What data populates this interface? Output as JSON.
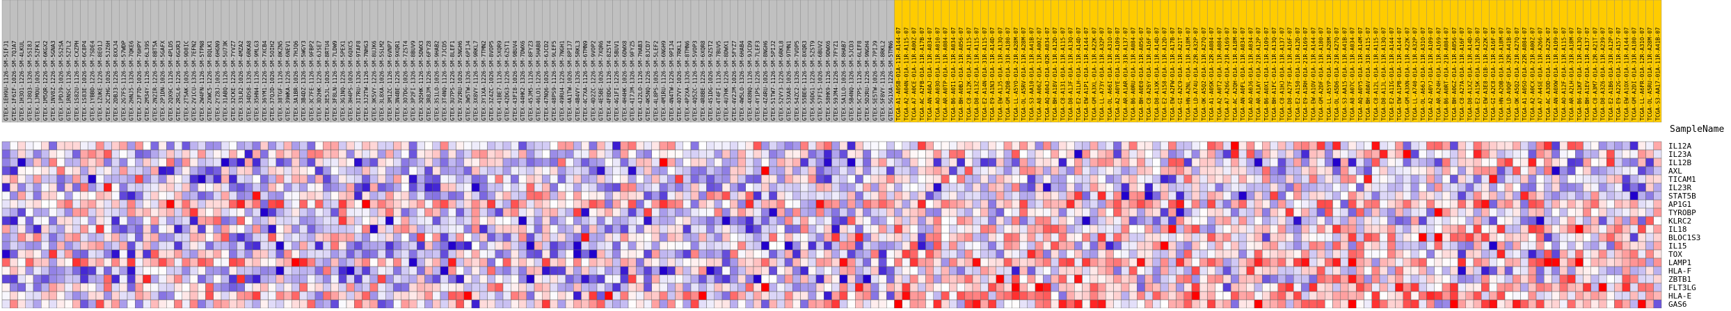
{
  "chart_data": {
    "type": "heatmap",
    "title": "",
    "row_axis_label": "SampleName",
    "colors": {
      "low": "#2200cc",
      "mid": "#ffffff",
      "high": "#ff0000",
      "group_normal": "#c0c0c0",
      "group_tumor": "#ffcc00",
      "grid": "#666666"
    },
    "genes": [
      "IL12A",
      "IL23A",
      "IL12B",
      "AXL",
      "TICAM1",
      "IL23R",
      "STAT5B",
      "AP1G1",
      "TYROBP",
      "KLRC2",
      "IL18",
      "BLOC1S3",
      "IL15",
      "TOX",
      "LAMP1",
      "HLA-F",
      "ZBTB1",
      "FLT3LG",
      "HLA-E",
      "GAS6"
    ],
    "samples": {
      "group_a": [
        "GTEX-1EH9U-1126-SM-5IFJ1",
        "GTEX-1F6IF-1026-SM-7QJA7",
        "GTEX-1H3O1-1226-SM-4LKUL",
        "GTEX-1J8Q3-1326-SM-5SI8J",
        "GTEX-1JMOU-1026-SM-5ZFK1",
        "GTEX-1M5QR-1226-SM-6KGX2",
        "GTEX-1NV8Z-1226-SM-5GNA3",
        "GTEX-1PDJ9-1026-SM-5S2SA",
        "GTEX-1RNSC-1126-SM-5Z7L2",
        "GTEX-1S82U-1126-SM-CXZPH",
        "GTEX-1S83E-1026-SM-6C8P4",
        "GTEX-1YBBD-1226-SM-7SDE4",
        "GTEX-1ZUKE-1226-SM-8EO1J",
        "GTEX-2C2HG-1026-SM-5JZ6H",
        "GTEX-2DBJ3-1226-SM-8XXJ4",
        "GTEX-2G7FS-1126-SM-57WDP",
        "GTEX-2HNJ5-1326-SM-7QKE6",
        "GTEX-2JF7D-1026-SM-76HPY",
        "GTEX-2M34Y-1126-SM-6L39S",
        "GTEX-2N2IR-1226-SM-8BT5A",
        "GTEX-2P1DN-1026-SM-5GAFX",
        "GTEX-2QX9C-1126-SM-4PLD5",
        "GTEX-2RSL6-1226-SM-6GXR3",
        "GTEX-2T5AK-1026-SM-9D8IC",
        "GTEX-2V1CU-1326-SM-7EFN2",
        "GTEX-2W4FN-1126-SM-5TPN8",
        "GTEX-2XWC5-1226-SM-8QLK1",
        "GTEX-2YZ8J-1026-SM-6HGN9",
        "GTEX-31ABQ-1126-SM-5U73K",
        "GTEX-32CKE-1226-SM-7YVZ7",
        "GTEX-33LR2-1026-SM-4MZA2",
        "GTEX-34DS8-1326-SM-6RKA8",
        "GTEX-35HN4-1126-SM-9MLG3",
        "GTEX-36YM1-1226-SM-7XCB4",
        "GTEX-37QJD-1026-SM-5OIH2",
        "GTEX-38TGF-1126-SM-8KZN5",
        "GTEX-39WKA-1226-SM-6NEV1",
        "GTEX-3A1BR-1026-SM-7HJQ6",
        "GTEX-3B4DZ-1326-SM-5WGY3",
        "GTEX-3C7FE-1126-SM-9FBP2",
        "GTEX-3D2HK-1226-SM-6JSE7",
        "GTEX-3E5JL-1026-SM-8RTU4",
        "GTEX-3F8LN-1126-SM-7LDW9",
        "GTEX-3G1NQ-1226-SM-5PEX1",
        "GTEX-3H4PS-1026-SM-6QXC5",
        "GTEX-3I7RU-1326-SM-9TAF8",
        "GTEX-3J2TW-1126-SM-7NHG3",
        "GTEX-3K5VY-1226-SM-8UJK6",
        "GTEX-3L8XA-1026-SM-5SLM2",
        "GTEX-3M1ZC-1126-SM-6VNP7",
        "GTEX-3N4BE-1226-SM-9XQR1",
        "GTEX-3O7DG-1026-SM-7ZST4",
        "GTEX-3P2FI-1326-SM-8BUV9",
        "GTEX-3Q5HK-1126-SM-5DWX3",
        "GTEX-3R8JM-1226-SM-6FYZ8",
        "GTEX-3S1LO-1026-SM-9HAB2",
        "GTEX-3T4NQ-1126-SM-7JCD5",
        "GTEX-3U7PS-1226-SM-8LEF1",
        "GTEX-3V2RU-1026-SM-5NGH6",
        "GTEX-3W5TW-1326-SM-6PIJ4",
        "GTEX-3X8VY-1126-SM-9RKL7",
        "GTEX-3Y1XA-1226-SM-7TMN2",
        "GTEX-3Z4ZC-1026-SM-8VOP5",
        "GTEX-41BE7-1126-SM-5XQR9",
        "GTEX-42DG3-1226-SM-6ZST1",
        "GTEX-43FI8-1026-SM-9BUV4",
        "GTEX-44HK2-1326-SM-7DWX6",
        "GTEX-45JM5-1126-SM-8FYZ3",
        "GTEX-46LO1-1226-SM-5HAB8",
        "GTEX-47NQ6-1026-SM-6JCD2",
        "GTEX-48PS9-1126-SM-9LEF5",
        "GTEX-49RU4-1226-SM-7NGH1",
        "GTEX-4A1TW-1026-SM-8PIJ7",
        "GTEX-4B4VY-1326-SM-5RKL3",
        "GTEX-4C7XA-1126-SM-6TMN9",
        "GTEX-4D2ZC-1226-SM-9VOP2",
        "GTEX-4E5BE-1026-SM-7XQR6",
        "GTEX-4F8DG-1126-SM-8ZST4",
        "GTEX-4G1FI-1226-SM-5BUV1",
        "GTEX-4H4HK-1026-SM-6DWX8",
        "GTEX-4I7JM-1326-SM-9FYZ5",
        "GTEX-4J2LO-1126-SM-7HAB3",
        "GTEX-4K5NQ-1226-SM-8JCD7",
        "GTEX-4L8PS-1026-SM-5LEF2",
        "GTEX-4M1RU-1126-SM-6NGH9",
        "GTEX-4N4TW-1226-SM-9PIJ4",
        "GTEX-4O7VY-1026-SM-7RKL1",
        "GTEX-4P2XA-1326-SM-8TMN6",
        "GTEX-4Q5ZC-1126-SM-5VOP3",
        "GTEX-4R8BE-1226-SM-6XQR8",
        "GTEX-4S1DG-1026-SM-9ZST2",
        "GTEX-4T4FI-1126-SM-7BUV5",
        "GTEX-4U7HK-1226-SM-8DWX1",
        "GTEX-4V2JM-1026-SM-5FYZ7",
        "GTEX-4W5LO-1326-SM-6HAB4",
        "GTEX-4X8NQ-1126-SM-9JCD9",
        "GTEX-4Y1PS-1226-SM-7LEF3",
        "GTEX-4Z4RU-1026-SM-8NGH6",
        "GTEX-51TW7-1126-SM-5PIJ2",
        "GTEX-52VY3-1226-SM-6RKL8",
        "GTEX-53XA8-1026-SM-9TMN1",
        "GTEX-54ZC2-1326-SM-7VOP5",
        "GTEX-55BE6-1126-SM-8XQR3",
        "GTEX-56DG1-1226-SM-5ZST9",
        "GTEX-57FI5-1026-SM-6BUV2",
        "GTEX-58HK9-1126-SM-9DWX6",
        "GTEX-59JM4-1226-SM-7FYZ1",
        "GTEX-5A1LO-1026-SM-8HAB7",
        "GTEX-5B4NQ-1326-SM-5JCD3",
        "GTEX-5C7PS-1126-SM-6LEF8",
        "GTEX-5D2RU-1226-SM-9NGH4",
        "GTEX-5E5TW-1026-SM-7PIJ9",
        "GTEX-5F8VY-1126-SM-8RKL2",
        "GTEX-5G1XA-1226-SM-5TMN6"
      ],
      "group_b": [
        "TCGA-A1-A0SB-01A-11R-A144-07",
        "TCGA-A2-A04N-01A-11R-A115-07",
        "TCGA-A7-A0CE-01A-11R-A00Z-07",
        "TCGA-AC-A2FB-01A-11R-A17B-07",
        "TCGA-AN-A0AJ-01A-11R-A034-07",
        "TCGA-AO-A03O-01A-11R-A010-07",
        "TCGA-AR-A0TP-01A-11R-A084-07",
        "TCGA-B6-A0I1-01A-11R-A034-07",
        "TCGA-BH-A0BJ-01A-11R-A056-07",
        "TCGA-C8-A12K-01A-21R-A115-07",
        "TCGA-D8-A13Z-01A-11R-A115-07",
        "TCGA-E2-A14N-01A-31R-A115-07",
        "TCGA-E9-A1N3-01A-11R-A14D-07",
        "TCGA-EW-A1J5-01A-11R-A13Q-07",
        "TCGA-GM-A2DB-01A-31R-A180-07",
        "TCGA-LL-A5YO-01A-21R-A28M-07",
        "TCGA-OL-A5RV-01A-11R-A28M-07",
        "TCGA-S3-AA10-01A-11R-A41B-07",
        "TCGA-A8-A06Z-01A-11R-A00Z-07",
        "TCGA-AQ-A04J-01A-02R-A034-07",
        "TCGA-BH-A18V-01A-11R-A12D-07",
        "TCGA-C8-A131-01A-11R-A115-07",
        "TCGA-D8-A1JF-01A-11R-A13Q-07",
        "TCGA-E2-A1LH-01A-11R-A14D-07",
        "TCGA-EW-A1P1-01A-11R-A144-07",
        "TCGA-GM-A3XL-01A-11R-A22K-07",
        "TCGA-LL-A73Y-01A-11R-A32P-07",
        "TCGA-OL-A66I-01A-11R-A31O-07",
        "TCGA-A2-A0YE-01A-11R-A109-07",
        "TCGA-AR-A1AR-01A-31R-A137-07",
        "TCGA-B6-A0RU-01A-11R-A084-07",
        "TCGA-BH-A0E0-01A-11R-A056-07",
        "TCGA-C8-A26Y-01A-11R-A16F-07",
        "TCGA-D8-A1XK-01A-11R-A14D-07",
        "TCGA-E2-A158-01A-11R-A12D-07",
        "TCGA-EW-A2FW-01A-11R-A17B-07",
        "TCGA-GI-A2C9-01A-11R-A21T-07",
        "TCGA-HN-A2NL-01A-11R-A18M-07",
        "TCGA-LD-A74U-01A-22R-A32P-07",
        "TCGA-OK-A5Q2-01A-11R-A27Q-07",
        "TCGA-A1-A0SK-01A-12R-A084-07",
        "TCGA-A2-A0T2-01A-11R-A084-07",
        "TCGA-A7-A26G-01A-21R-A169-07",
        "TCGA-AC-A2QH-01A-11R-A18M-07",
        "TCGA-AN-A0FL-01A-11R-A034-07",
        "TCGA-AO-A0J6-01A-11R-A034-07",
        "TCGA-AR-A1AY-01A-21R-A12P-07",
        "TCGA-B6-A0X1-01A-11R-A109-07",
        "TCGA-BH-A1FC-01A-11R-A13Q-07",
        "TCGA-C8-A1HJ-01A-11R-A137-07",
        "TCGA-D8-A27F-01A-11R-A16F-07",
        "TCGA-E2-A150-01A-11R-A12D-07",
        "TCGA-E9-A1RH-01A-21R-A169-07",
        "TCGA-EW-A1OV-01A-11R-A144-07",
        "TCGA-GM-A2DF-01A-11R-A180-07",
        "TCGA-LL-A5YP-01A-11R-A28M-07",
        "TCGA-OL-A5D6-01A-21R-A27Q-07",
        "TCGA-S3-AA15-01A-11R-A41B-07",
        "TCGA-A8-A07C-01A-11R-A034-07",
        "TCGA-AQ-A0Y5-01A-11R-A14M-07",
        "TCGA-BH-A0AV-01A-31R-A115-07",
        "TCGA-C8-A12L-01A-11R-A115-07",
        "TCGA-D8-A1JL-01A-11R-A13Q-07",
        "TCGA-E2-A1IG-01A-11R-A144-07",
        "TCGA-EW-A1PB-01A-11R-A144-07",
        "TCGA-GM-A3XN-01A-11R-A22K-07",
        "TCGA-LL-A740-01A-11R-A32P-07",
        "TCGA-OL-A66J-01A-11R-A31O-07",
        "TCGA-A2-A0YJ-01A-11R-A109-07",
        "TCGA-AR-A24H-01A-11R-A169-07",
        "TCGA-B6-A0RT-01A-21R-A084-07",
        "TCGA-BH-A0GZ-01A-11R-A056-07",
        "TCGA-C8-A27A-01A-11R-A16F-07",
        "TCGA-D8-A1XZ-01A-11R-A14D-07",
        "TCGA-E2-A15K-01A-11R-A12D-07",
        "TCGA-EW-A3E8-01B-11R-A22K-07",
        "TCGA-GI-A2C8-01A-11R-A16F-07",
        "TCGA-HN-A2OB-01A-11R-A18M-07",
        "TCGA-LD-A9QF-01A-32R-A41B-07",
        "TCGA-OK-A5Q2-01A-21R-A27Q-07",
        "TCGA-A1-A0SO-01A-22R-A084-07",
        "TCGA-A2-A0CX-01A-21R-A00Z-07",
        "TCGA-A7-A4SE-01A-11R-A266-07",
        "TCGA-AC-A3OD-01A-11R-A22K-07",
        "TCGA-AN-A0XW-01A-11R-A109-07",
        "TCGA-AO-A12F-01A-11R-A115-07",
        "TCGA-AR-A2LH-01A-31R-A18M-07",
        "TCGA-B6-A1KF-01A-11R-A13Q-07",
        "TCGA-BH-A1EV-01A-11R-A137-07",
        "TCGA-C8-A3M7-01A-12R-A21T-07",
        "TCGA-D8-A3Z6-01A-11R-A239-07",
        "TCGA-E2-A1B6-01A-31R-A12P-07",
        "TCGA-E9-A22G-01A-11R-A157-07",
        "TCGA-EW-A1OX-01A-11R-A144-07",
        "TCGA-GM-A2DI-01A-31R-A180-07",
        "TCGA-LL-A6FR-01A-12R-A31O-07",
        "TCGA-OL-A5RU-01A-11R-A28M-07",
        "TCGA-S3-AA17-01A-11R-A41B-07"
      ]
    },
    "color_scale_range": [
      -3,
      3
    ],
    "note_values": "each cell is a z-scored expression value read from colour intensity",
    "values": [
      [
        -1.6,
        -0.4,
        0.3,
        -0.9,
        1.8,
        -0.7,
        0.6,
        -1.2,
        0.2,
        -0.5,
        1.4,
        -1.1,
        0.8,
        -2.1,
        0.1,
        -0.3,
        2.2,
        -0.8,
        0.4,
        -1.5
      ],
      [
        0.9,
        -1.3,
        -0.2,
        0.7,
        -0.6,
        1.1,
        -1.7,
        0.5,
        -0.9,
        1.6,
        -0.4,
        0.3,
        -1.2,
        0.8,
        -2.4,
        1.3,
        -0.1,
        0.6,
        -0.8,
        0.2
      ]
    ]
  }
}
